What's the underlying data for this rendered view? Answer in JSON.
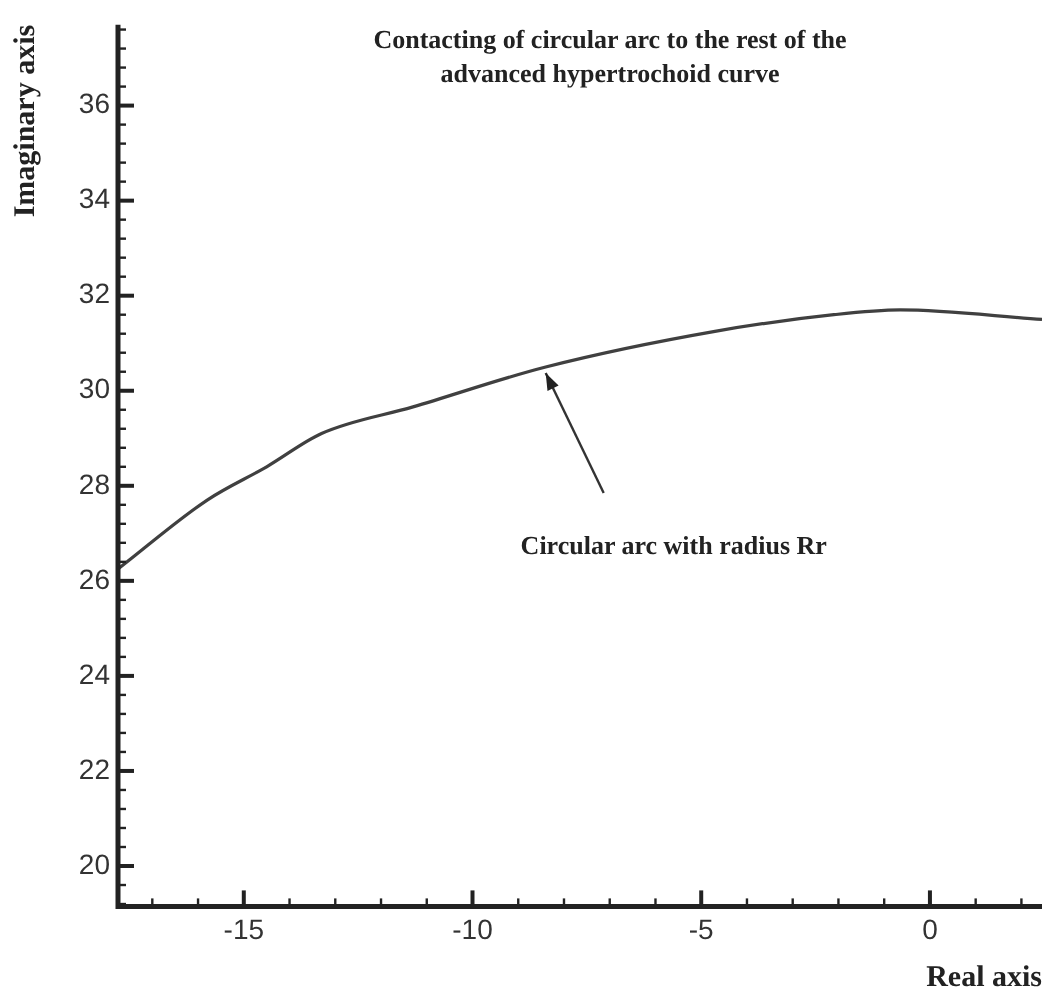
{
  "chart_data": {
    "type": "line",
    "title": "Contacting of circular arc to the rest of the advanced hypertrochoid curve",
    "xlabel": "Real axis",
    "ylabel": "Imaginary axis",
    "x": [
      -17.75,
      -15.8,
      -14.5,
      -13.3,
      -11.3,
      -8.4,
      -4.7,
      -2.1,
      -0.65,
      2.45
    ],
    "series": [
      {
        "color": "#404040",
        "values": [
          26.25,
          27.7,
          28.4,
          29.1,
          29.66,
          30.5,
          31.25,
          31.6,
          31.7,
          31.5
        ]
      }
    ],
    "xlim": [
      -17.75,
      2.45
    ],
    "ylim": [
      19.15,
      37.7
    ],
    "xticks": [
      -15,
      -10,
      -5,
      0
    ],
    "yticks": [
      20,
      22,
      24,
      26,
      28,
      30,
      32,
      34,
      36
    ],
    "annotations": [
      "Circular arc with radius Rr"
    ],
    "grid": false,
    "legend": false,
    "marker": "none",
    "line_style": "solid"
  }
}
